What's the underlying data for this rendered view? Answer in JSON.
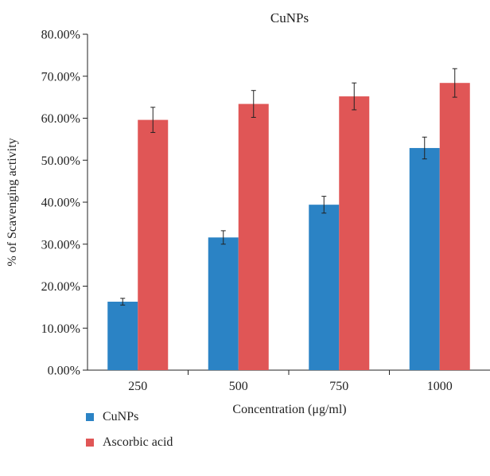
{
  "chart_data": {
    "type": "bar",
    "title": "CuNPs",
    "xlabel": "Concentration (μg/ml)",
    "ylabel": "% of Scavenging activity",
    "categories": [
      "250",
      "500",
      "750",
      "1000"
    ],
    "y_ticks": [
      "0.00%",
      "10.00%",
      "20.00%",
      "30.00%",
      "40.00%",
      "50.00%",
      "60.00%",
      "70.00%",
      "80.00%"
    ],
    "ylim": [
      0,
      80
    ],
    "grid": false,
    "legend_position": "bottom-left",
    "series": [
      {
        "name": "CuNPs",
        "color": "#2b83c5",
        "values": [
          16.3,
          31.6,
          39.4,
          52.9
        ],
        "errors": [
          0.8,
          1.6,
          2.0,
          2.6
        ]
      },
      {
        "name": "Ascorbic acid",
        "color": "#e05656",
        "values": [
          59.6,
          63.4,
          65.2,
          68.4
        ],
        "errors": [
          3.0,
          3.2,
          3.2,
          3.4
        ]
      }
    ]
  }
}
